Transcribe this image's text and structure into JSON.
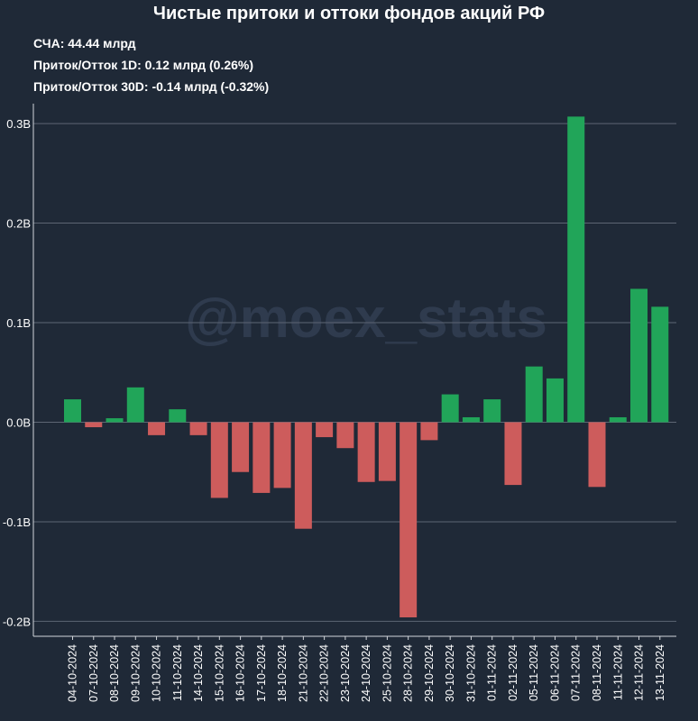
{
  "chart_data": {
    "type": "bar",
    "title": "Чистые притоки и оттоки фондов акций РФ",
    "watermark": "@moex_stats",
    "stats": [
      "СЧА: 44.44 млрд",
      "Приток/Отток 1D: 0.12 млрд (0.26%)",
      "Приток/Отток 30D: -0.14 млрд (-0.32%)"
    ],
    "categories": [
      "04-10-2024",
      "07-10-2024",
      "08-10-2024",
      "09-10-2024",
      "10-10-2024",
      "11-10-2024",
      "14-10-2024",
      "15-10-2024",
      "16-10-2024",
      "17-10-2024",
      "18-10-2024",
      "21-10-2024",
      "22-10-2024",
      "23-10-2024",
      "24-10-2024",
      "25-10-2024",
      "28-10-2024",
      "29-10-2024",
      "30-10-2024",
      "31-10-2024",
      "01-11-2024",
      "02-11-2024",
      "05-11-2024",
      "06-11-2024",
      "07-11-2024",
      "08-11-2024",
      "11-11-2024",
      "12-11-2024",
      "13-11-2024"
    ],
    "values": [
      0.023,
      -0.005,
      0.004,
      0.035,
      -0.013,
      0.013,
      -0.013,
      -0.076,
      -0.05,
      -0.071,
      -0.066,
      -0.107,
      -0.015,
      -0.026,
      -0.06,
      -0.059,
      -0.196,
      -0.018,
      0.028,
      0.005,
      0.023,
      -0.063,
      0.056,
      0.044,
      0.307,
      -0.065,
      0.005,
      0.134,
      0.116
    ],
    "yticks": [
      0.3,
      0.2,
      0.1,
      0.0,
      -0.1,
      -0.2
    ],
    "ytick_labels": [
      "0.3B",
      "0.2B",
      "0.1B",
      "0.0B",
      "-0.1B",
      "-0.2B"
    ],
    "ylim": [
      -0.215,
      0.32
    ],
    "grid": true,
    "colors": {
      "positive": "#21a559",
      "negative": "#cd5c5c",
      "grid": "#5d6674",
      "background": "#1f2937"
    }
  }
}
